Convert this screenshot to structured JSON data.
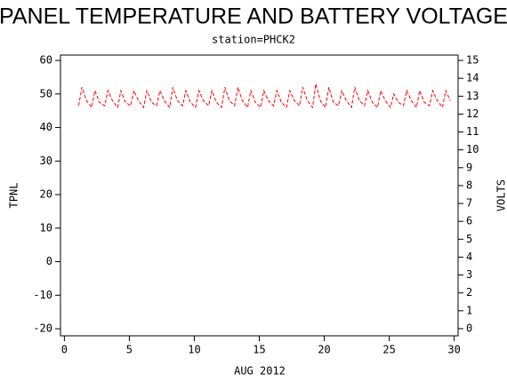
{
  "chart_data": {
    "type": "line",
    "title": "PANEL TEMPERATURE AND BATTERY VOLTAGE",
    "subtitle": "station=PHCK2",
    "xlabel": "AUG 2012",
    "ylabel": "TPNL",
    "y2label": "VOLTS",
    "xlim": [
      -0.3,
      30.3
    ],
    "xticks": [
      0,
      5,
      10,
      15,
      20,
      25,
      30
    ],
    "ylim": [
      -22.1,
      61.6
    ],
    "yticks": [
      -20,
      -10,
      0,
      10,
      20,
      30,
      40,
      50,
      60
    ],
    "y2lim": [
      -0.4,
      15.3
    ],
    "y2ticks": [
      0,
      1,
      2,
      3,
      4,
      5,
      6,
      7,
      8,
      9,
      10,
      11,
      12,
      13,
      14,
      15
    ],
    "x": [
      1.1,
      1.35,
      1.7,
      2.1,
      2.35,
      2.7,
      3.1,
      3.35,
      3.7,
      4.1,
      4.35,
      4.7,
      5.1,
      5.35,
      5.7,
      6.1,
      6.35,
      6.7,
      7.1,
      7.35,
      7.7,
      8.1,
      8.35,
      8.7,
      9.1,
      9.35,
      9.7,
      10.1,
      10.35,
      10.7,
      11.1,
      11.35,
      11.7,
      12.1,
      12.35,
      12.7,
      13.1,
      13.35,
      13.7,
      14.1,
      14.35,
      14.7,
      15.1,
      15.35,
      15.7,
      16.1,
      16.35,
      16.7,
      17.1,
      17.35,
      17.7,
      18.1,
      18.35,
      18.7,
      19.1,
      19.35,
      19.7,
      20.1,
      20.35,
      20.7,
      21.1,
      21.35,
      21.7,
      22.1,
      22.35,
      22.7,
      23.1,
      23.35,
      23.7,
      24.1,
      24.35,
      24.7,
      25.1,
      25.35,
      25.7,
      26.1,
      26.35,
      26.7,
      27.1,
      27.35,
      27.7,
      28.1,
      28.35,
      28.7,
      29.1,
      29.35,
      29.7
    ],
    "series": [
      {
        "color": "#ff0000",
        "dashed": true,
        "values": [
          46.5,
          52,
          48,
          46,
          51,
          47.5,
          46.5,
          51,
          48,
          46,
          51,
          47.5,
          46.5,
          51,
          48,
          46,
          51,
          47.5,
          46.5,
          51,
          48,
          46,
          52,
          48,
          46.5,
          51,
          47.5,
          46,
          51,
          48,
          46.5,
          51,
          47.5,
          46,
          52,
          48,
          46.5,
          52,
          48,
          46,
          51,
          47.5,
          46,
          51,
          48,
          46.5,
          51,
          47.5,
          46,
          51,
          48,
          46.5,
          52,
          48,
          46,
          53,
          48,
          46,
          52,
          47.5,
          46.5,
          51,
          48,
          46,
          52,
          48,
          46.5,
          51,
          47.5,
          46,
          51,
          48,
          46,
          50,
          47.5,
          46.5,
          51,
          48,
          46,
          51,
          47.5,
          46.5,
          51,
          48,
          46,
          51,
          48
        ]
      }
    ]
  }
}
